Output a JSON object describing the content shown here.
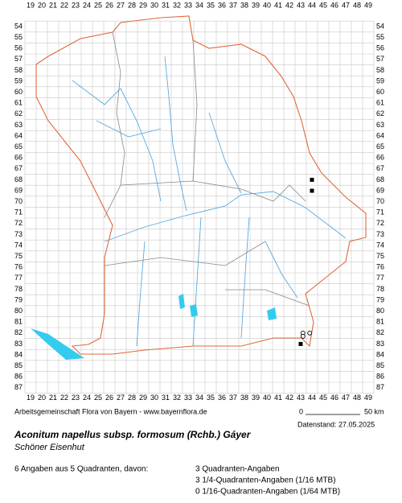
{
  "columns": [
    19,
    20,
    21,
    22,
    23,
    24,
    25,
    26,
    27,
    28,
    29,
    30,
    31,
    32,
    33,
    34,
    35,
    36,
    37,
    38,
    39,
    40,
    41,
    42,
    43,
    44,
    45,
    46,
    47,
    48,
    49
  ],
  "rows": [
    54,
    55,
    56,
    57,
    58,
    59,
    60,
    61,
    62,
    63,
    64,
    65,
    66,
    67,
    68,
    69,
    70,
    71,
    72,
    73,
    74,
    75,
    76,
    77,
    78,
    79,
    80,
    81,
    82,
    83,
    84,
    85,
    86,
    87
  ],
  "footer": {
    "credit": "Arbeitsgemeinschaft Flora von Bayern - www.bayernflora.de",
    "scale_start": "0",
    "scale_end": "50 km",
    "date": "Datenstand: 27.05.2025"
  },
  "species": {
    "name": "Aconitum napellus subsp. formosum (Rchb.) Gáyer",
    "common": "Schöner Eisenhut"
  },
  "summary": {
    "total": "6 Angaben aus 5 Quadranten, davon:",
    "lines": [
      "3 Quadranten-Angaben",
      "3 1/4-Quadranten-Angaben (1/16 MTB)",
      "0 1/16-Quadranten-Angaben (1/64 MTB)"
    ]
  },
  "quadrant_records": [
    [
      44,
      68
    ],
    [
      44,
      69
    ],
    [
      43,
      83
    ]
  ],
  "quarter_records": [
    [
      43.2,
      82
    ],
    [
      43.8,
      82
    ],
    [
      43.2,
      82.3
    ]
  ]
}
